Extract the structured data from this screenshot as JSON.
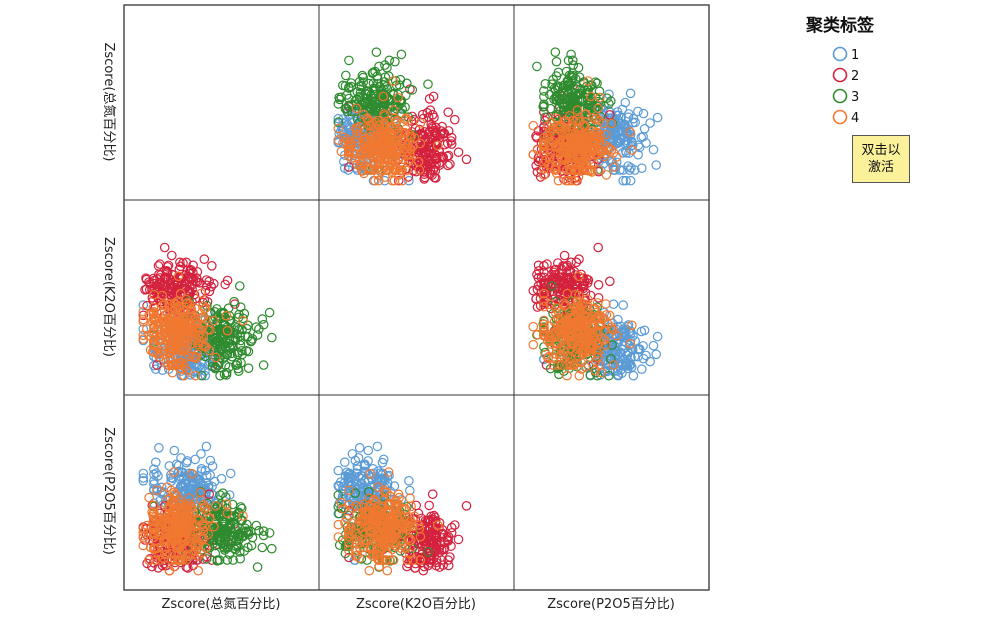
{
  "chart_data": {
    "type": "scatter",
    "subtype": "scatter-matrix",
    "variables": [
      "Zscore(总氮百分比)",
      "Zscore(K2O百分比)",
      "Zscore(P2O5百分比)"
    ],
    "y_axis_labels": [
      "Zscore(总氮百分比)",
      "Zscore(K2O百分比)",
      "Zscore(P2O5百分比)"
    ],
    "x_axis_labels": [
      "Zscore(总氮百分比)",
      "Zscore(K2O百分比)",
      "Zscore(P2O5百分比)"
    ],
    "diagonal": "empty",
    "grid": false,
    "marker": "hollow-circle",
    "legend": {
      "title": "聚类标签",
      "placement": "top-right",
      "entries": [
        {
          "label": "1",
          "color": "#5b9bd5"
        },
        {
          "label": "2",
          "color": "#d4213d"
        },
        {
          "label": "3",
          "color": "#2e8b2e"
        },
        {
          "label": "4",
          "color": "#f07830"
        }
      ]
    },
    "panel_ranges": {
      "x": [
        [
          -2,
          4
        ],
        [
          -2,
          4
        ],
        [
          -2,
          4
        ]
      ],
      "y": [
        [
          -2,
          4
        ],
        [
          -2,
          4
        ],
        [
          -2,
          4
        ]
      ]
    },
    "series": [
      {
        "name": "1",
        "cluster_means": {
          "n": -0.3,
          "k": -0.9,
          "p": 1.0
        },
        "approx_count": 180
      },
      {
        "name": "2",
        "cluster_means": {
          "n": -0.7,
          "k": 1.3,
          "p": -0.8
        },
        "approx_count": 180
      },
      {
        "name": "3",
        "cluster_means": {
          "n": 1.1,
          "k": -0.5,
          "p": -0.4
        },
        "approx_count": 180
      },
      {
        "name": "4",
        "cluster_means": {
          "n": -0.6,
          "k": -0.3,
          "p": -0.3
        },
        "approx_count": 280
      }
    ]
  },
  "note": {
    "text_line1": "双击以",
    "text_line2": "激活"
  }
}
